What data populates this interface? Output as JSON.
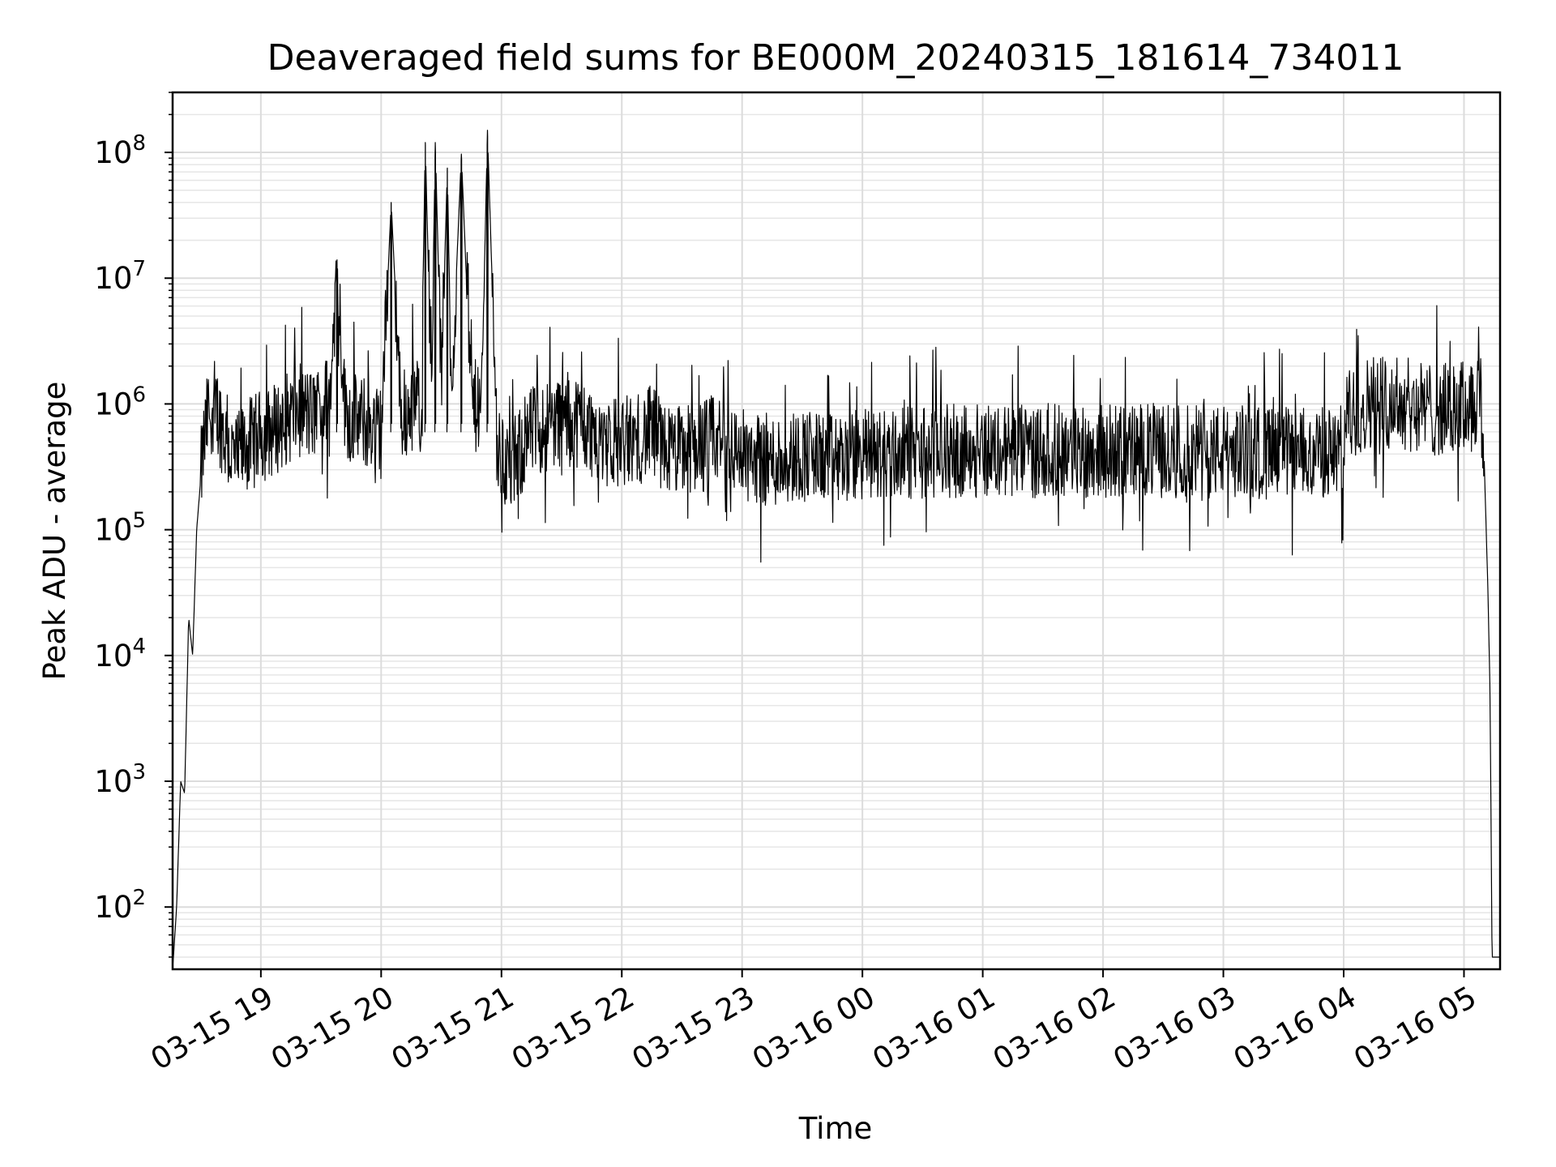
{
  "chart_data": {
    "type": "line",
    "title": "Deaveraged field sums for BE000M_20240315_181614_734011",
    "xlabel": "Time",
    "ylabel": "Peak ADU - average",
    "yscale": "log",
    "ylim": [
      32,
      300000000
    ],
    "xlim": [
      "2024-03-15 18:16",
      "2024-03-16 05:18"
    ],
    "grid": true,
    "grid_minor": true,
    "line_color": "#000000",
    "x_tick_labels": [
      "03-15 19",
      "03-15 20",
      "03-15 21",
      "03-15 22",
      "03-15 23",
      "03-16 00",
      "03-16 01",
      "03-16 02",
      "03-16 03",
      "03-16 04",
      "03-16 05"
    ],
    "y_tick_labels": [
      {
        "base": "10",
        "exp": "2"
      },
      {
        "base": "10",
        "exp": "3"
      },
      {
        "base": "10",
        "exp": "4"
      },
      {
        "base": "10",
        "exp": "5"
      },
      {
        "base": "10",
        "exp": "6"
      },
      {
        "base": "10",
        "exp": "7"
      },
      {
        "base": "10",
        "exp": "8"
      }
    ],
    "series": [
      {
        "x": [
          "2024-03-15 18:16",
          "2024-03-15 18:18",
          "2024-03-15 18:20",
          "2024-03-15 18:22",
          "2024-03-15 18:24",
          "2024-03-15 18:26",
          "2024-03-15 18:28",
          "2024-03-15 18:31",
          "2024-03-15 18:34",
          "2024-03-15 18:37",
          "2024-03-15 18:40",
          "2024-03-15 18:45",
          "2024-03-15 18:48",
          "2024-03-15 18:52",
          "2024-03-15 18:56",
          "2024-03-15 19:00",
          "2024-03-15 19:05",
          "2024-03-15 19:10",
          "2024-03-15 19:15",
          "2024-03-15 19:20",
          "2024-03-15 19:25",
          "2024-03-15 19:30",
          "2024-03-15 19:35",
          "2024-03-15 19:38",
          "2024-03-15 19:42",
          "2024-03-15 19:45",
          "2024-03-15 19:50",
          "2024-03-15 19:55",
          "2024-03-15 20:00",
          "2024-03-15 20:05",
          "2024-03-15 20:10",
          "2024-03-15 20:15",
          "2024-03-15 20:20",
          "2024-03-15 20:22",
          "2024-03-15 20:25",
          "2024-03-15 20:27",
          "2024-03-15 20:30",
          "2024-03-15 20:33",
          "2024-03-15 20:35",
          "2024-03-15 20:40",
          "2024-03-15 20:45",
          "2024-03-15 20:50",
          "2024-03-15 20:53",
          "2024-03-15 20:58",
          "2024-03-15 21:05",
          "2024-03-15 21:15",
          "2024-03-15 21:25",
          "2024-03-15 21:35",
          "2024-03-15 21:45",
          "2024-03-15 21:55",
          "2024-03-15 22:05",
          "2024-03-15 22:15",
          "2024-03-15 22:25",
          "2024-03-15 22:35",
          "2024-03-15 22:45",
          "2024-03-15 22:50",
          "2024-03-15 23:00",
          "2024-03-15 23:15",
          "2024-03-15 23:30",
          "2024-03-15 23:45",
          "2024-03-16 00:00",
          "2024-03-16 00:15",
          "2024-03-16 00:30",
          "2024-03-16 00:45",
          "2024-03-16 01:00",
          "2024-03-16 01:20",
          "2024-03-16 01:40",
          "2024-03-16 02:00",
          "2024-03-16 02:20",
          "2024-03-16 02:40",
          "2024-03-16 03:00",
          "2024-03-16 03:20",
          "2024-03-16 03:40",
          "2024-03-16 04:00",
          "2024-03-16 04:02",
          "2024-03-16 04:15",
          "2024-03-16 04:30",
          "2024-03-16 04:45",
          "2024-03-16 04:55",
          "2024-03-16 05:05",
          "2024-03-16 05:08",
          "2024-03-16 05:10",
          "2024-03-16 05:12",
          "2024-03-16 05:13",
          "2024-03-16 05:14"
        ],
        "y": [
          32,
          100,
          1000,
          800,
          20000,
          10000,
          100000,
          400000,
          900000,
          1000000,
          700000,
          400000,
          350000,
          450000,
          500000,
          550000,
          600000,
          700000,
          800000,
          900000,
          800000,
          900000,
          1200000,
          14000000,
          900000,
          800000,
          700000,
          700000,
          600000,
          40000000,
          800000,
          1000000,
          1100000,
          120000000,
          1300000,
          120000000,
          1400000,
          75000000,
          1200000,
          97000000,
          1000000,
          900000,
          150000000,
          400000,
          300000,
          600000,
          700000,
          800000,
          600000,
          500000,
          500000,
          600000,
          400000,
          450000,
          500000,
          500000,
          400000,
          350000,
          400000,
          350000,
          400000,
          400000,
          420000,
          420000,
          430000,
          420000,
          430000,
          420000,
          430000,
          420000,
          420000,
          410000,
          400000,
          420000,
          800000,
          1100000,
          1000000,
          900000,
          900000,
          1000000,
          1200000,
          400000,
          30000,
          5000,
          40
        ]
      }
    ]
  }
}
